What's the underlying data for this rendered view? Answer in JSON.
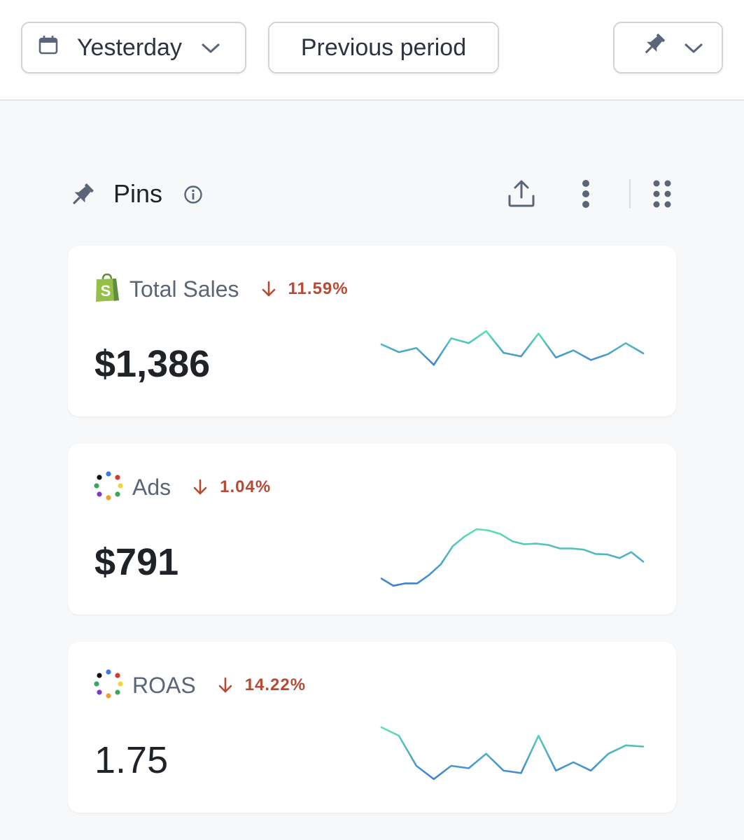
{
  "toolbar": {
    "date_range": {
      "label": "Yesterday",
      "icon": "calendar-icon"
    },
    "comparison": {
      "label": "Previous period"
    },
    "pin_menu": {
      "icon": "pin-icon"
    }
  },
  "section": {
    "title": "Pins",
    "icons": [
      "pin-icon",
      "info-icon",
      "share-icon",
      "more-vertical-icon",
      "drag-grid-icon"
    ]
  },
  "colors": {
    "negative": "#b84a33",
    "spark_start": "#3f7fd6",
    "spark_end": "#5ee0b4",
    "shopify": "#95bf47"
  },
  "cards": [
    {
      "name": "Total Sales",
      "source_icon": "shopify-icon",
      "delta": "11.59%",
      "direction": "down",
      "value": "$1,386",
      "spark": [
        0.78,
        0.65,
        0.72,
        0.44,
        0.88,
        0.8,
        1.0,
        0.64,
        0.58,
        0.96,
        0.56,
        0.68,
        0.52,
        0.62,
        0.8,
        0.63
      ]
    },
    {
      "name": "Ads",
      "source_icon": "dots-ring-icon",
      "delta": "1.04%",
      "direction": "down",
      "value": "$791",
      "spark": [
        0.18,
        0.06,
        0.1,
        0.1,
        0.24,
        0.42,
        0.72,
        0.88,
        1.0,
        0.98,
        0.92,
        0.8,
        0.75,
        0.76,
        0.74,
        0.68,
        0.68,
        0.66,
        0.59,
        0.58,
        0.52,
        0.62,
        0.46
      ]
    },
    {
      "name": "ROAS",
      "source_icon": "dots-ring-icon",
      "delta": "14.22%",
      "direction": "down",
      "value": "1.75",
      "spark": [
        1.0,
        0.86,
        0.36,
        0.14,
        0.36,
        0.32,
        0.56,
        0.28,
        0.24,
        0.86,
        0.28,
        0.42,
        0.28,
        0.56,
        0.7,
        0.68
      ]
    }
  ]
}
